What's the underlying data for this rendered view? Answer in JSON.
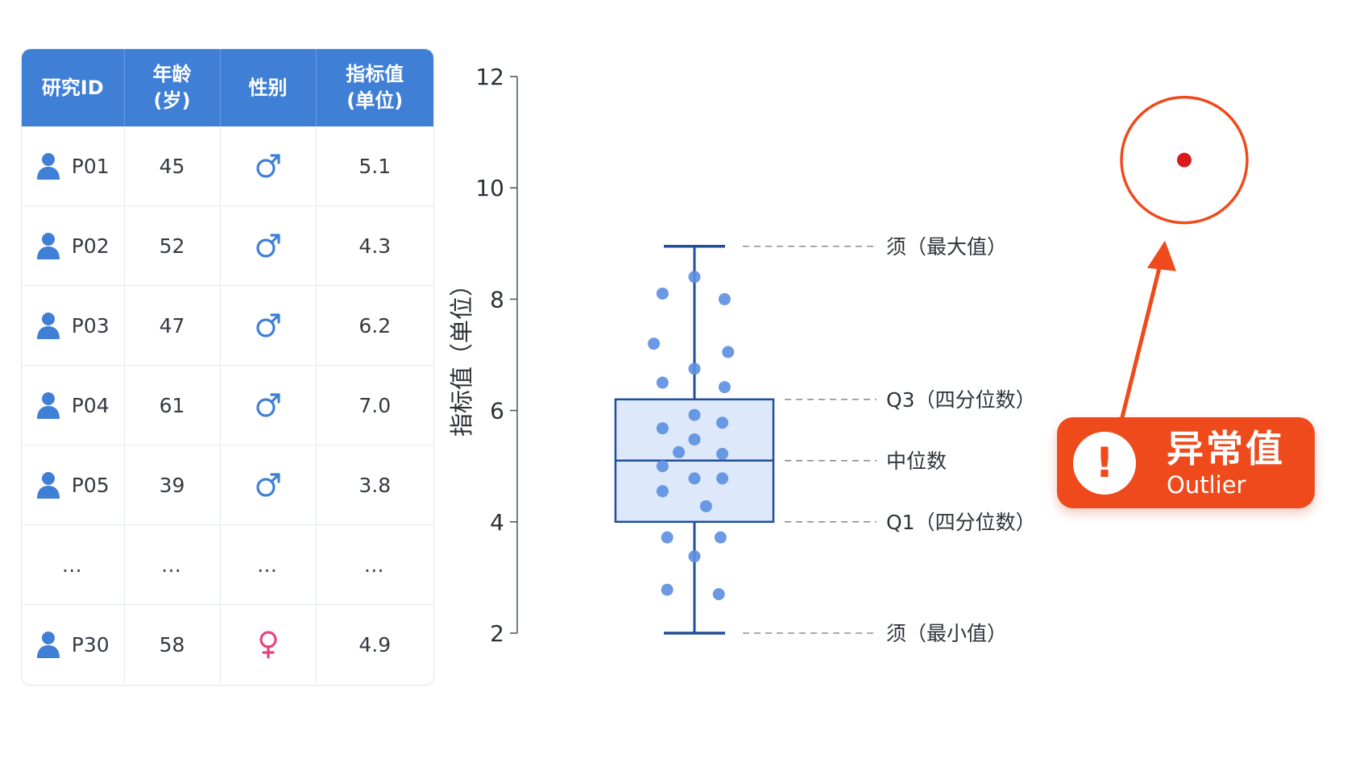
{
  "table": {
    "headers": [
      "研究ID",
      "年龄\n(岁)",
      "性别",
      "指标值\n(单位)"
    ],
    "rows": [
      {
        "id": "P01",
        "age": "45",
        "sex": "male",
        "value": "5.1"
      },
      {
        "id": "P02",
        "age": "52",
        "sex": "male",
        "value": "4.3"
      },
      {
        "id": "P03",
        "age": "47",
        "sex": "male",
        "value": "6.2"
      },
      {
        "id": "P04",
        "age": "61",
        "sex": "male",
        "value": "7.0"
      },
      {
        "id": "P05",
        "age": "39",
        "sex": "male",
        "value": "3.8"
      },
      {
        "id": "…",
        "age": "…",
        "sex": "…",
        "value": "…",
        "ellipsis": true
      },
      {
        "id": "P30",
        "age": "58",
        "sex": "female",
        "value": "4.9"
      }
    ],
    "colors": {
      "header_bg": "#3f7fd6",
      "person_icon": "#3f7fd6",
      "male": "#3f7fd6",
      "female": "#e8457a"
    }
  },
  "chart_data": {
    "type": "box",
    "ylabel": "指标值（单位）",
    "ylim": [
      2,
      12
    ],
    "yticks": [
      2,
      4,
      6,
      8,
      10,
      12
    ],
    "box": {
      "whisker_min": 2,
      "q1": 4,
      "median": 5.1,
      "q3": 6.2,
      "whisker_max": 8.95
    },
    "points": [
      {
        "x": -0.55,
        "y": 8.1
      },
      {
        "x": 0.0,
        "y": 8.4
      },
      {
        "x": 0.52,
        "y": 8.0
      },
      {
        "x": -0.7,
        "y": 7.2
      },
      {
        "x": 0.58,
        "y": 7.05
      },
      {
        "x": 0.0,
        "y": 6.75
      },
      {
        "x": -0.55,
        "y": 6.5
      },
      {
        "x": 0.52,
        "y": 6.42
      },
      {
        "x": 0.0,
        "y": 5.92
      },
      {
        "x": 0.48,
        "y": 5.78
      },
      {
        "x": -0.55,
        "y": 5.68
      },
      {
        "x": 0.0,
        "y": 5.48
      },
      {
        "x": -0.27,
        "y": 5.25
      },
      {
        "x": 0.48,
        "y": 5.22
      },
      {
        "x": -0.55,
        "y": 5.0
      },
      {
        "x": 0.0,
        "y": 4.78
      },
      {
        "x": 0.48,
        "y": 4.78
      },
      {
        "x": -0.55,
        "y": 4.55
      },
      {
        "x": 0.2,
        "y": 4.28
      },
      {
        "x": -0.47,
        "y": 3.72
      },
      {
        "x": 0.45,
        "y": 3.72
      },
      {
        "x": 0.0,
        "y": 3.38
      },
      {
        "x": -0.47,
        "y": 2.78
      },
      {
        "x": 0.42,
        "y": 2.7
      }
    ],
    "outlier": {
      "y": 10.5
    },
    "annotations": {
      "max": "须（最大值）",
      "q3": "Q3（四分位数）",
      "median": "中位数",
      "q1": "Q1（四分位数）",
      "min": "须（最小值）"
    },
    "colors": {
      "box_stroke": "#1f4f99",
      "box_fill": "#dde9fb",
      "points": "#5b8ee0",
      "outlier": "#d81b1b",
      "highlight": "#ef4a1c"
    }
  },
  "badge": {
    "title": "异常值",
    "subtitle": "Outlier",
    "icon": "exclamation-icon"
  }
}
